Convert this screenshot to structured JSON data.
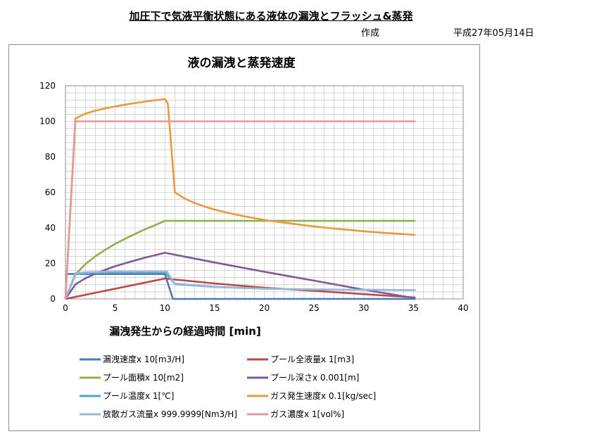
{
  "header": {
    "title": "加圧下で気液平衡状態にある液体の漏洩とフラッシュ&蒸発",
    "author": "作成",
    "date": "平成27年05月14日"
  },
  "chart_data": {
    "type": "line",
    "title": "液の漏洩と蒸発速度",
    "xlabel": "漏洩発生からの経過時間 [min]",
    "ylabel": "",
    "xlim": [
      0,
      40
    ],
    "ylim": [
      0,
      120
    ],
    "xticks": [
      0,
      5,
      10,
      15,
      20,
      25,
      30,
      35,
      40
    ],
    "yticks": [
      0,
      20,
      40,
      60,
      80,
      100,
      120
    ],
    "grid": true,
    "legend": "bottom",
    "series": [
      {
        "name": "漏洩速度x 10[m3/H]",
        "color": "#4a7ab8",
        "x": [
          0,
          0.1,
          10,
          10.8,
          35.2
        ],
        "y": [
          0,
          14,
          14,
          0,
          0
        ]
      },
      {
        "name": "プール全液量x 1[m3]",
        "color": "#b84a4a",
        "x": [
          0,
          2,
          4,
          6,
          8,
          10,
          15,
          20,
          25,
          30,
          35.2
        ],
        "y": [
          0,
          2.3,
          4.6,
          6.9,
          9.2,
          11.5,
          8.7,
          6.3,
          4.6,
          2.7,
          0.8
        ]
      },
      {
        "name": "プール面積x 10[m2]",
        "color": "#8fb04a",
        "x": [
          0,
          1,
          2,
          3,
          4,
          5,
          6,
          7,
          8,
          9,
          10,
          35.2
        ],
        "y": [
          0,
          13.8,
          19.6,
          24,
          27.7,
          31,
          33.9,
          36.6,
          39.2,
          41.5,
          44,
          44
        ]
      },
      {
        "name": "プール深さx 0.001[m]",
        "color": "#7a5a9a",
        "x": [
          0,
          1,
          2,
          3,
          4,
          5,
          6,
          7,
          8,
          9,
          10,
          15,
          20,
          25,
          30,
          35.2
        ],
        "y": [
          0,
          8.2,
          11.6,
          14.2,
          16.4,
          18.4,
          20.1,
          21.7,
          23.2,
          24.6,
          26,
          20.5,
          15.3,
          10.3,
          5.2,
          0.4
        ]
      },
      {
        "name": "プール温度x 1[℃]",
        "color": "#4ba8c4",
        "x": [
          0,
          1,
          2,
          5,
          10,
          11,
          15,
          20,
          25,
          30,
          35.2
        ],
        "y": [
          0,
          14,
          14.5,
          15,
          15,
          8.5,
          6.8,
          5.8,
          5.3,
          5.1,
          5
        ]
      },
      {
        "name": "ガス発生速度x 0.1[kg/sec]",
        "color": "#e89a3c",
        "x": [
          0,
          1,
          1.5,
          2,
          3,
          4,
          5,
          6,
          7,
          8,
          9,
          10,
          10.3,
          11,
          12,
          13,
          14,
          15,
          16,
          18,
          20,
          22,
          24,
          26,
          28,
          30,
          32,
          34,
          35.2
        ],
        "y": [
          0,
          101.5,
          103,
          104.3,
          106,
          107.3,
          108.4,
          109.4,
          110.3,
          111.1,
          111.9,
          112.5,
          110,
          60,
          56.5,
          54,
          52,
          50.3,
          48.9,
          46.5,
          44.5,
          42.9,
          41.5,
          40.2,
          39.1,
          38.1,
          37.2,
          36.5,
          36
        ]
      },
      {
        "name": "放散ガス流量x 999.9999[Nm3/H]",
        "color": "#9bb7d9",
        "x": [
          0,
          1,
          2,
          5,
          10.2,
          11,
          15,
          20,
          25,
          30,
          35.2
        ],
        "y": [
          0,
          14.5,
          15,
          15.5,
          15.5,
          8.2,
          6.7,
          5.8,
          5.3,
          5.1,
          5
        ]
      },
      {
        "name": "ガス濃度x 1[vol%]",
        "color": "#e09a9a",
        "x": [
          0,
          1,
          35.2
        ],
        "y": [
          0,
          100,
          100
        ]
      }
    ]
  }
}
